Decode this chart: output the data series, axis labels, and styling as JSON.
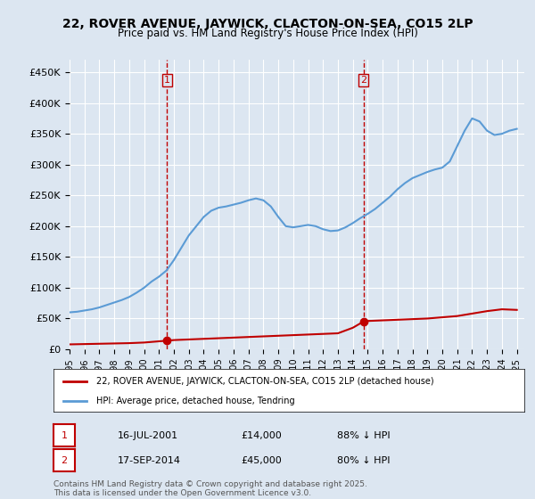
{
  "title": "22, ROVER AVENUE, JAYWICK, CLACTON-ON-SEA, CO15 2LP",
  "subtitle": "Price paid vs. HM Land Registry's House Price Index (HPI)",
  "ylabel": "",
  "bg_color": "#dce6f1",
  "plot_bg_color": "#dce6f1",
  "hpi_color": "#5b9bd5",
  "price_color": "#c00000",
  "vline_color": "#c00000",
  "vline_style": "--",
  "transactions": [
    {
      "date": 2001.54,
      "price": 14000,
      "label": "1"
    },
    {
      "date": 2014.71,
      "price": 45000,
      "label": "2"
    }
  ],
  "legend_line1": "22, ROVER AVENUE, JAYWICK, CLACTON-ON-SEA, CO15 2LP (detached house)",
  "legend_line2": "HPI: Average price, detached house, Tendring",
  "annotation1_date": "16-JUL-2001",
  "annotation1_price": "£14,000",
  "annotation1_hpi": "88% ↓ HPI",
  "annotation2_date": "17-SEP-2014",
  "annotation2_price": "£45,000",
  "annotation2_hpi": "80% ↓ HPI",
  "footer": "Contains HM Land Registry data © Crown copyright and database right 2025.\nThis data is licensed under the Open Government Licence v3.0.",
  "ylim": [
    0,
    470000
  ],
  "yticks": [
    0,
    50000,
    100000,
    150000,
    200000,
    250000,
    300000,
    350000,
    400000,
    450000
  ],
  "xmin": 1995.0,
  "xmax": 2025.5,
  "hpi_x": [
    1995.0,
    1995.5,
    1996.0,
    1996.5,
    1997.0,
    1997.5,
    1998.0,
    1998.5,
    1999.0,
    1999.5,
    2000.0,
    2000.5,
    2001.0,
    2001.5,
    2002.0,
    2002.5,
    2003.0,
    2003.5,
    2004.0,
    2004.5,
    2005.0,
    2005.5,
    2006.0,
    2006.5,
    2007.0,
    2007.5,
    2008.0,
    2008.5,
    2009.0,
    2009.5,
    2010.0,
    2010.5,
    2011.0,
    2011.5,
    2012.0,
    2012.5,
    2013.0,
    2013.5,
    2014.0,
    2014.5,
    2015.0,
    2015.5,
    2016.0,
    2016.5,
    2017.0,
    2017.5,
    2018.0,
    2018.5,
    2019.0,
    2019.5,
    2020.0,
    2020.5,
    2021.0,
    2021.5,
    2022.0,
    2022.5,
    2023.0,
    2023.5,
    2024.0,
    2024.5,
    2025.0
  ],
  "hpi_y": [
    60000,
    61000,
    63000,
    65000,
    68000,
    72000,
    76000,
    80000,
    85000,
    92000,
    100000,
    110000,
    118000,
    128000,
    145000,
    165000,
    185000,
    200000,
    215000,
    225000,
    230000,
    232000,
    235000,
    238000,
    242000,
    245000,
    242000,
    232000,
    215000,
    200000,
    198000,
    200000,
    202000,
    200000,
    195000,
    192000,
    193000,
    198000,
    205000,
    213000,
    220000,
    228000,
    238000,
    248000,
    260000,
    270000,
    278000,
    283000,
    288000,
    292000,
    295000,
    305000,
    330000,
    355000,
    375000,
    370000,
    355000,
    348000,
    350000,
    355000,
    358000
  ],
  "price_x": [
    1995.0,
    1996.0,
    1997.0,
    1998.0,
    1999.0,
    2000.0,
    2001.0,
    2001.54,
    2002.0,
    2003.0,
    2004.0,
    2005.0,
    2006.0,
    2007.0,
    2008.0,
    2009.0,
    2010.0,
    2011.0,
    2012.0,
    2013.0,
    2014.0,
    2014.71,
    2015.0,
    2016.0,
    2017.0,
    2018.0,
    2019.0,
    2020.0,
    2021.0,
    2022.0,
    2023.0,
    2024.0,
    2025.0
  ],
  "price_y": [
    8000,
    8500,
    9000,
    9500,
    10000,
    11000,
    13000,
    14000,
    15000,
    16000,
    17000,
    18000,
    19000,
    20000,
    21000,
    22000,
    23000,
    24000,
    25000,
    26000,
    35000,
    45000,
    46000,
    47000,
    48000,
    49000,
    50000,
    52000,
    54000,
    58000,
    62000,
    65000,
    64000
  ]
}
